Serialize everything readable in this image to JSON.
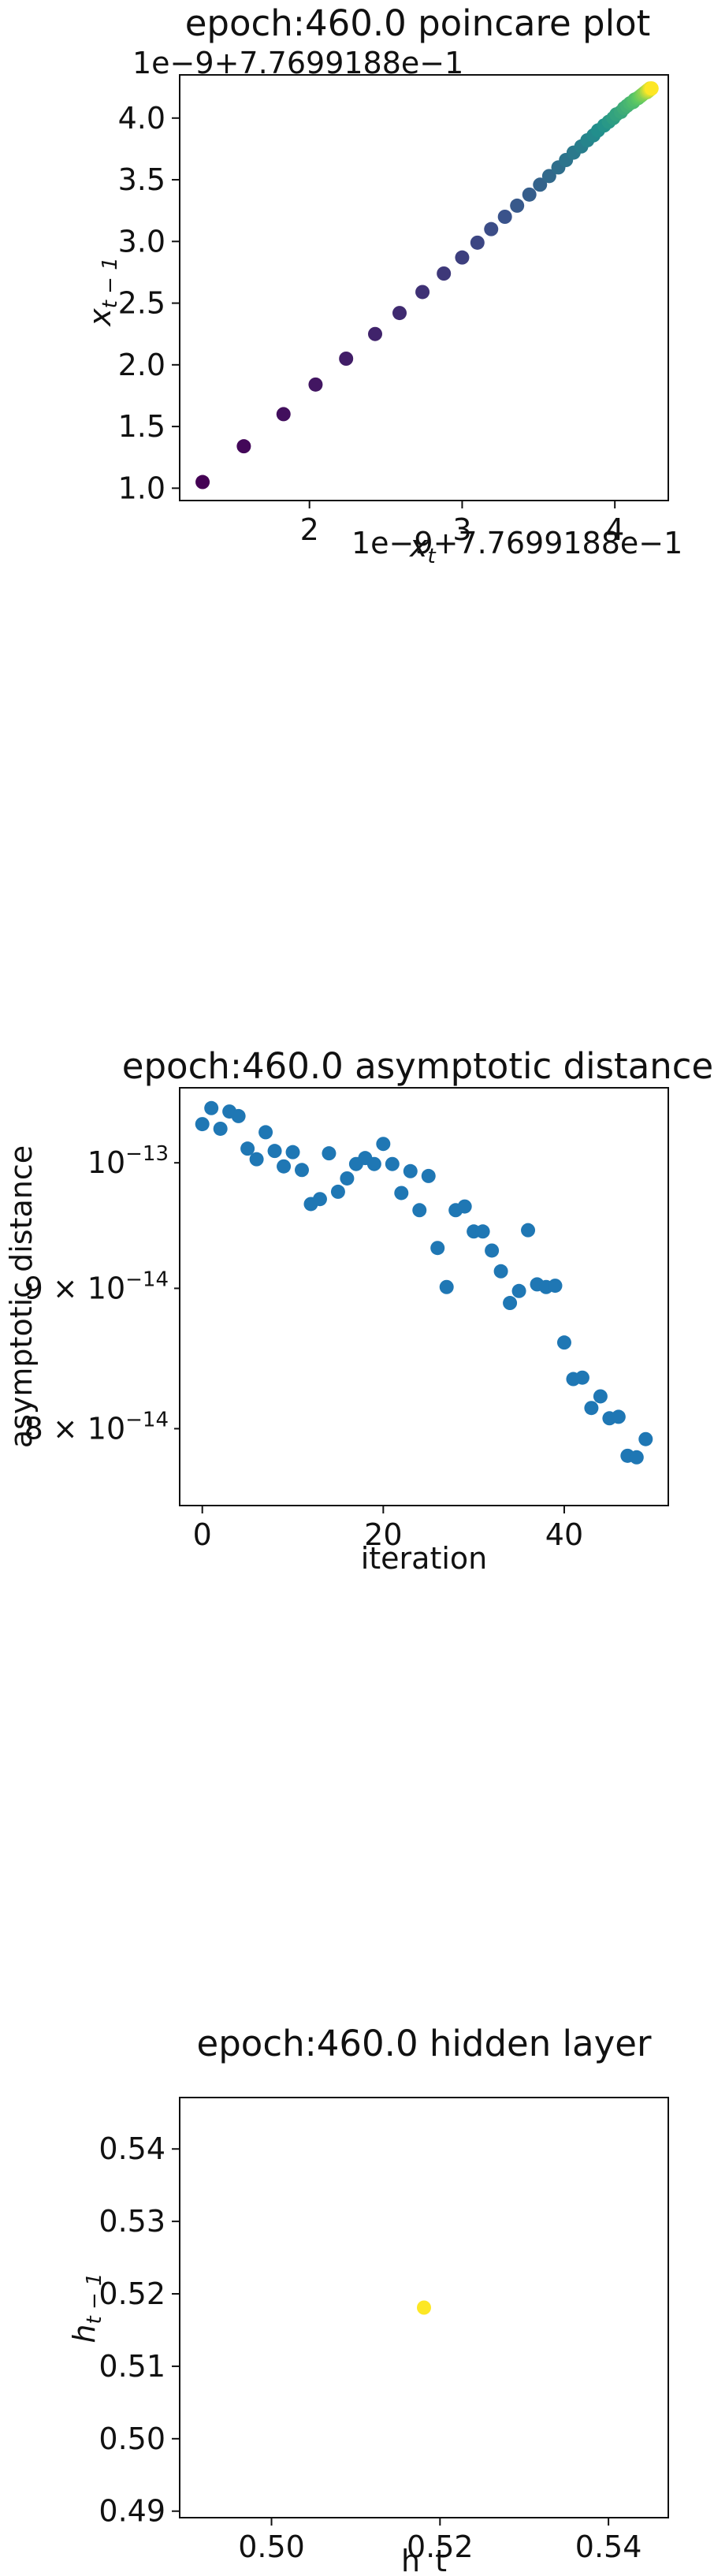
{
  "chart_data": [
    {
      "type": "scatter",
      "title": "epoch:460.0 poincare plot",
      "xlabel": "x_t",
      "ylabel": "x_{t-1}",
      "x_offset_text": "1e−9+7.7699188e−1",
      "y_offset_text": "1e−9+7.7699188e−1",
      "xlim": [
        1.15,
        4.35
      ],
      "ylim": [
        0.9,
        4.35
      ],
      "xticks": [
        2,
        3,
        4
      ],
      "xtick_labels": [
        "2",
        "3",
        "4"
      ],
      "yticks": [
        1.0,
        1.5,
        2.0,
        2.5,
        3.0,
        3.5,
        4.0
      ],
      "ytick_labels": [
        "1.0",
        "1.5",
        "2.0",
        "2.5",
        "3.0",
        "3.5",
        "4.0"
      ],
      "colormap": [
        "#440154",
        "#3b528b",
        "#21918c",
        "#5ec962",
        "#fde725"
      ],
      "points": [
        {
          "x": 1.3,
          "y": 1.05
        },
        {
          "x": 1.57,
          "y": 1.34
        },
        {
          "x": 1.83,
          "y": 1.6
        },
        {
          "x": 2.04,
          "y": 1.84
        },
        {
          "x": 2.24,
          "y": 2.05
        },
        {
          "x": 2.43,
          "y": 2.25
        },
        {
          "x": 2.59,
          "y": 2.42
        },
        {
          "x": 2.74,
          "y": 2.59
        },
        {
          "x": 2.88,
          "y": 2.74
        },
        {
          "x": 3.0,
          "y": 2.87
        },
        {
          "x": 3.1,
          "y": 2.99
        },
        {
          "x": 3.19,
          "y": 3.1
        },
        {
          "x": 3.28,
          "y": 3.2
        },
        {
          "x": 3.36,
          "y": 3.29
        },
        {
          "x": 3.44,
          "y": 3.38
        },
        {
          "x": 3.51,
          "y": 3.46
        },
        {
          "x": 3.57,
          "y": 3.53
        },
        {
          "x": 3.63,
          "y": 3.6
        },
        {
          "x": 3.68,
          "y": 3.66
        },
        {
          "x": 3.73,
          "y": 3.72
        },
        {
          "x": 3.78,
          "y": 3.77
        },
        {
          "x": 3.82,
          "y": 3.82
        },
        {
          "x": 3.86,
          "y": 3.86
        },
        {
          "x": 3.89,
          "y": 3.9
        },
        {
          "x": 3.93,
          "y": 3.94
        },
        {
          "x": 3.96,
          "y": 3.97
        },
        {
          "x": 3.99,
          "y": 4.0
        },
        {
          "x": 4.01,
          "y": 4.03
        },
        {
          "x": 4.04,
          "y": 4.05
        },
        {
          "x": 4.06,
          "y": 4.08
        },
        {
          "x": 4.08,
          "y": 4.1
        },
        {
          "x": 4.1,
          "y": 4.12
        },
        {
          "x": 4.12,
          "y": 4.13
        },
        {
          "x": 4.13,
          "y": 4.15
        },
        {
          "x": 4.15,
          "y": 4.16
        },
        {
          "x": 4.16,
          "y": 4.17
        },
        {
          "x": 4.17,
          "y": 4.18
        },
        {
          "x": 4.18,
          "y": 4.19
        },
        {
          "x": 4.19,
          "y": 4.2
        },
        {
          "x": 4.2,
          "y": 4.21
        },
        {
          "x": 4.21,
          "y": 4.21
        },
        {
          "x": 4.21,
          "y": 4.22
        },
        {
          "x": 4.22,
          "y": 4.22
        },
        {
          "x": 4.22,
          "y": 4.23
        },
        {
          "x": 4.23,
          "y": 4.23
        },
        {
          "x": 4.23,
          "y": 4.24
        },
        {
          "x": 4.24,
          "y": 4.24
        },
        {
          "x": 4.24,
          "y": 4.24
        }
      ],
      "grid": false
    },
    {
      "type": "scatter",
      "title": "epoch:460.0 asymptotic distance",
      "xlabel": "iteration",
      "ylabel": "asymptotic distance",
      "yscale": "log",
      "xlim": [
        -2.5,
        51.5
      ],
      "ylim": [
        7.5e-14,
        1.065e-13
      ],
      "xticks": [
        0,
        20,
        40
      ],
      "xtick_labels": [
        "0",
        "20",
        "40"
      ],
      "ytick_labels": [
        {
          "value": 1e-13,
          "mantissa": "",
          "exponent": "−13",
          "base": "10"
        },
        {
          "value": 9e-14,
          "mantissa": "9 × ",
          "exponent": "−14",
          "base": "10"
        },
        {
          "value": 8e-14,
          "mantissa": "8 × ",
          "exponent": "−14",
          "base": "10"
        }
      ],
      "color": "#1f77b4",
      "x": [
        0,
        1,
        2,
        3,
        4,
        5,
        6,
        7,
        8,
        9,
        10,
        11,
        12,
        13,
        14,
        15,
        16,
        17,
        18,
        19,
        20,
        21,
        22,
        23,
        24,
        25,
        26,
        27,
        28,
        29,
        30,
        31,
        32,
        33,
        34,
        35,
        36,
        37,
        38,
        39,
        40,
        41,
        42,
        43,
        44,
        45,
        46,
        47,
        48,
        49
      ],
      "y": [
        1.033e-13,
        1.047e-13,
        1.029e-13,
        1.044e-13,
        1.04e-13,
        1.012e-13,
        1.003e-13,
        1.026e-13,
        1.01e-13,
        9.97e-14,
        1.009e-13,
        9.94e-14,
        9.66e-14,
        9.7e-14,
        1.008e-13,
        9.76e-14,
        9.87e-14,
        9.99e-14,
        1.004e-13,
        9.99e-14,
        1.016e-13,
        9.99e-14,
        9.75e-14,
        9.93e-14,
        9.61e-14,
        9.89e-14,
        9.31e-14,
        9.01e-14,
        9.61e-14,
        9.64e-14,
        9.44e-14,
        9.44e-14,
        9.29e-14,
        9.13e-14,
        8.89e-14,
        8.98e-14,
        9.45e-14,
        9.03e-14,
        9.01e-14,
        9.02e-14,
        8.6e-14,
        8.34e-14,
        8.35e-14,
        8.14e-14,
        8.22e-14,
        8.07e-14,
        8.08e-14,
        7.82e-14,
        7.81e-14,
        7.93e-14
      ],
      "grid": false
    },
    {
      "type": "scatter",
      "title": "epoch:460.0 hidden layer",
      "xlabel": "h_t",
      "ylabel": "h_{t-1}",
      "xlim": [
        0.4891,
        0.5471
      ],
      "ylim": [
        0.4891,
        0.5471
      ],
      "xticks": [
        0.5,
        0.52,
        0.54
      ],
      "xtick_labels": [
        "0.50",
        "0.52",
        "0.54"
      ],
      "yticks": [
        0.49,
        0.5,
        0.51,
        0.52,
        0.53,
        0.54
      ],
      "ytick_labels": [
        "0.49",
        "0.50",
        "0.51",
        "0.52",
        "0.53",
        "0.54"
      ],
      "color": "#fde725",
      "points": [
        {
          "x": 0.5181,
          "y": 0.5181
        }
      ],
      "grid": false
    }
  ]
}
